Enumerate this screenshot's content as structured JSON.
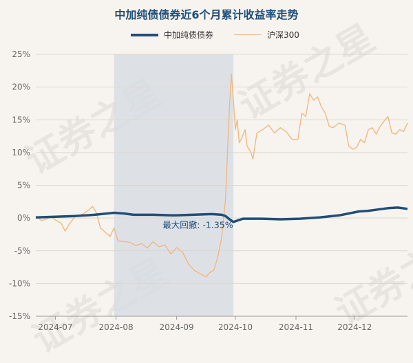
{
  "chart_data": {
    "type": "line",
    "title": "中加纯债债券近6个月累计收益率走势",
    "ylim": [
      -15,
      25
    ],
    "yticks": [
      -15,
      -10,
      -5,
      0,
      5,
      10,
      15,
      20,
      25
    ],
    "ytick_labels": [
      "-15%",
      "-10%",
      "-5%",
      "0%",
      "5%",
      "10%",
      "15%",
      "20%",
      "25%"
    ],
    "xticks": [
      {
        "label": "2024-07",
        "x": 10
      },
      {
        "label": "2024-08",
        "x": 41
      },
      {
        "label": "2024-09",
        "x": 72
      },
      {
        "label": "2024-10",
        "x": 102
      },
      {
        "label": "2024-11",
        "x": 133
      },
      {
        "label": "2024-12",
        "x": 163
      }
    ],
    "xlim": [
      0,
      190
    ],
    "grid": true,
    "legend_position": "top-center",
    "annotation": {
      "text": "最大回撤: -1.35%",
      "x": 100,
      "y": 0.5
    },
    "shaded_region": {
      "x_start": 40,
      "x_end": 101
    },
    "series": [
      {
        "name": "中加纯债债券",
        "color": "#1f4e79",
        "points": [
          [
            0,
            0.1
          ],
          [
            10,
            0.2
          ],
          [
            20,
            0.3
          ],
          [
            30,
            0.5
          ],
          [
            40,
            0.8
          ],
          [
            45,
            0.7
          ],
          [
            50,
            0.5
          ],
          [
            60,
            0.5
          ],
          [
            70,
            0.4
          ],
          [
            80,
            0.5
          ],
          [
            90,
            0.6
          ],
          [
            95,
            0.5
          ],
          [
            97,
            0.3
          ],
          [
            99,
            -0.2
          ],
          [
            101,
            -0.6
          ],
          [
            103,
            -0.4
          ],
          [
            106,
            -0.1
          ],
          [
            115,
            -0.1
          ],
          [
            125,
            -0.2
          ],
          [
            135,
            -0.1
          ],
          [
            145,
            0.1
          ],
          [
            155,
            0.4
          ],
          [
            160,
            0.7
          ],
          [
            165,
            1.0
          ],
          [
            170,
            1.1
          ],
          [
            175,
            1.3
          ],
          [
            180,
            1.5
          ],
          [
            185,
            1.6
          ],
          [
            190,
            1.4
          ]
        ]
      },
      {
        "name": "沪深300",
        "color": "#f0b880",
        "points": [
          [
            0,
            0.3
          ],
          [
            3,
            -0.4
          ],
          [
            5,
            -0.2
          ],
          [
            8,
            0.2
          ],
          [
            10,
            -0.3
          ],
          [
            13,
            -0.8
          ],
          [
            15,
            -2.0
          ],
          [
            17,
            -1.0
          ],
          [
            20,
            0.2
          ],
          [
            24,
            0.6
          ],
          [
            27,
            1.2
          ],
          [
            29,
            1.8
          ],
          [
            31,
            0.8
          ],
          [
            33,
            -1.5
          ],
          [
            36,
            -2.3
          ],
          [
            38,
            -2.8
          ],
          [
            40,
            -1.5
          ],
          [
            42,
            -3.5
          ],
          [
            45,
            -3.6
          ],
          [
            48,
            -3.7
          ],
          [
            51,
            -4.2
          ],
          [
            54,
            -3.9
          ],
          [
            57,
            -4.6
          ],
          [
            60,
            -3.6
          ],
          [
            63,
            -4.4
          ],
          [
            66,
            -4.1
          ],
          [
            69,
            -5.5
          ],
          [
            72,
            -4.5
          ],
          [
            75,
            -5.2
          ],
          [
            78,
            -7.0
          ],
          [
            81,
            -8.0
          ],
          [
            84,
            -8.5
          ],
          [
            87,
            -9.0
          ],
          [
            89,
            -8.3
          ],
          [
            91,
            -8.0
          ],
          [
            93,
            -6.0
          ],
          [
            95,
            -3.0
          ],
          [
            97,
            3.0
          ],
          [
            98,
            10.0
          ],
          [
            99,
            17.0
          ],
          [
            100,
            22.0
          ],
          [
            101,
            18.0
          ],
          [
            102,
            13.5
          ],
          [
            103,
            15.0
          ],
          [
            104,
            11.5
          ],
          [
            105,
            12.0
          ],
          [
            107,
            13.5
          ],
          [
            108,
            11.0
          ],
          [
            110,
            10.0
          ],
          [
            111,
            9.0
          ],
          [
            113,
            13.0
          ],
          [
            116,
            13.5
          ],
          [
            119,
            14.2
          ],
          [
            122,
            13.0
          ],
          [
            125,
            13.8
          ],
          [
            128,
            13.2
          ],
          [
            131,
            12.0
          ],
          [
            134,
            12.0
          ],
          [
            136,
            16.0
          ],
          [
            138,
            15.5
          ],
          [
            140,
            19.0
          ],
          [
            142,
            18.0
          ],
          [
            144,
            18.5
          ],
          [
            146,
            17.0
          ],
          [
            148,
            16.0
          ],
          [
            150,
            14.0
          ],
          [
            152,
            13.8
          ],
          [
            155,
            14.5
          ],
          [
            158,
            14.2
          ],
          [
            160,
            11.0
          ],
          [
            162,
            10.5
          ],
          [
            164,
            10.8
          ],
          [
            166,
            12.0
          ],
          [
            168,
            11.5
          ],
          [
            170,
            13.5
          ],
          [
            172,
            13.8
          ],
          [
            174,
            12.8
          ],
          [
            176,
            14.0
          ],
          [
            178,
            14.8
          ],
          [
            180,
            15.5
          ],
          [
            182,
            13.0
          ],
          [
            184,
            12.8
          ],
          [
            186,
            13.5
          ],
          [
            188,
            13.2
          ],
          [
            190,
            14.5
          ]
        ]
      }
    ]
  },
  "watermark": "证券之星"
}
